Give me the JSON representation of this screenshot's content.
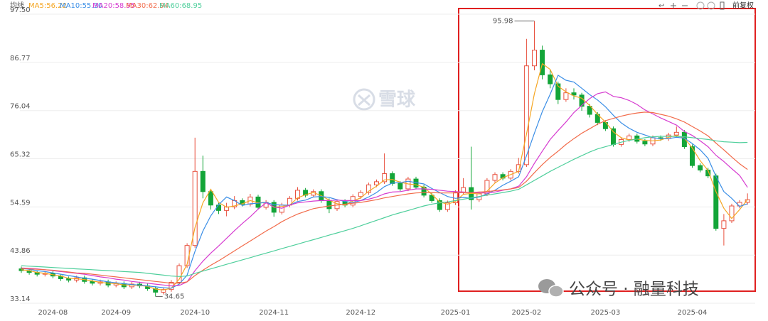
{
  "chart_data": {
    "type": "candlestick",
    "legend_title": "均线",
    "toolbar_label": "前复权",
    "watermarks": [
      "雪球",
      "公众号 · 融量科技"
    ],
    "up_color": "#e8513f",
    "down_color": "#13a538",
    "ylim": [
      33.14,
      97.5
    ],
    "yticks": [
      {
        "value": 33.14,
        "label": "33.14"
      },
      43.86,
      54.59,
      65.32,
      76.04,
      86.77,
      {
        "value": 97.5,
        "label": "97.50"
      }
    ],
    "grid": true,
    "categories": [
      null,
      null,
      null,
      null,
      "2024-08",
      null,
      null,
      null,
      null,
      null,
      null,
      null,
      "2024-09",
      null,
      null,
      null,
      null,
      null,
      null,
      null,
      null,
      null,
      "2024-10",
      null,
      null,
      null,
      null,
      null,
      null,
      null,
      null,
      null,
      "2024-11",
      null,
      null,
      null,
      null,
      null,
      null,
      null,
      null,
      null,
      null,
      "2024-12",
      null,
      null,
      null,
      null,
      null,
      null,
      null,
      null,
      null,
      null,
      null,
      "2025-01",
      null,
      null,
      null,
      null,
      null,
      null,
      null,
      null,
      "2025-02",
      null,
      null,
      null,
      null,
      null,
      null,
      null,
      null,
      null,
      "2025-03",
      null,
      null,
      null,
      null,
      null,
      null,
      null,
      null,
      null,
      null,
      "2025-04",
      null,
      null,
      null,
      null,
      null,
      null,
      null
    ],
    "open": [
      40.8,
      40.4,
      40.0,
      39.6,
      39.8,
      39.2,
      38.6,
      38.3,
      38.8,
      38.0,
      37.6,
      37.9,
      37.2,
      37.5,
      36.8,
      37.4,
      37.0,
      36.4,
      35.6,
      36.2,
      37.8,
      41.5,
      46.0,
      62.5,
      58.0,
      55.0,
      53.8,
      54.6,
      56.0,
      55.2,
      56.8,
      54.5,
      55.6,
      53.4,
      55.0,
      56.5,
      58.3,
      57.2,
      58.0,
      56.0,
      54.2,
      55.8,
      55.0,
      56.9,
      57.8,
      59.5,
      60.2,
      62.0,
      59.8,
      58.6,
      60.8,
      59.0,
      57.2,
      56.0,
      54.0,
      55.5,
      57.8,
      58.9,
      56.2,
      57.5,
      60.5,
      61.8,
      61.0,
      62.5,
      64.0,
      86.0,
      89.5,
      84.0,
      82.0,
      78.5,
      80.0,
      79.5,
      77.0,
      75.2,
      73.4,
      72.0,
      68.5,
      69.6,
      70.4,
      69.2,
      68.6,
      70.0,
      69.8,
      70.6,
      71.2,
      68.0,
      63.8,
      62.8,
      61.5,
      49.8,
      51.5,
      54.8,
      55.6
    ],
    "high": [
      41.3,
      40.9,
      40.5,
      40.3,
      40.3,
      39.7,
      39.1,
      39.3,
      39.3,
      38.5,
      38.4,
      38.4,
      38.0,
      38.0,
      37.9,
      37.9,
      37.5,
      36.9,
      36.7,
      38.3,
      42.0,
      46.5,
      70.0,
      66.0,
      58.5,
      55.5,
      55.5,
      57.0,
      56.5,
      57.5,
      57.3,
      56.1,
      56.1,
      55.5,
      57.0,
      59.0,
      58.8,
      58.5,
      58.5,
      56.5,
      56.3,
      56.3,
      57.4,
      58.3,
      60.0,
      60.7,
      66.5,
      62.5,
      60.3,
      61.3,
      61.3,
      59.5,
      57.7,
      56.5,
      56.0,
      58.3,
      61.0,
      68.0,
      58.0,
      61.0,
      62.3,
      62.3,
      63.0,
      65.5,
      92.0,
      95.98,
      90.5,
      85.0,
      82.5,
      81.0,
      81.0,
      80.0,
      77.5,
      75.7,
      73.9,
      72.5,
      70.1,
      70.9,
      70.9,
      69.7,
      70.5,
      70.5,
      71.1,
      72.5,
      71.7,
      68.5,
      64.3,
      63.3,
      62.0,
      53.0,
      55.3,
      56.1,
      57.6
    ],
    "low": [
      39.9,
      39.5,
      39.1,
      39.1,
      38.7,
      38.1,
      37.8,
      37.8,
      37.5,
      37.1,
      37.1,
      36.7,
      36.7,
      36.3,
      36.3,
      36.5,
      35.9,
      34.65,
      35.1,
      35.7,
      37.3,
      41.0,
      45.5,
      56.5,
      54.0,
      53.0,
      52.5,
      54.1,
      54.7,
      54.7,
      54.0,
      54.0,
      52.4,
      52.9,
      54.5,
      56.0,
      56.7,
      56.7,
      55.5,
      53.2,
      53.7,
      54.5,
      54.5,
      56.4,
      57.3,
      59.0,
      59.7,
      59.3,
      58.1,
      58.1,
      58.5,
      56.7,
      55.5,
      53.5,
      53.5,
      55.0,
      57.3,
      54.0,
      55.7,
      57.0,
      60.0,
      60.5,
      60.5,
      62.0,
      63.5,
      85.0,
      83.0,
      81.0,
      77.5,
      78.0,
      78.5,
      76.0,
      74.5,
      72.8,
      71.5,
      68.0,
      68.0,
      69.1,
      68.7,
      68.1,
      68.1,
      69.3,
      69.3,
      70.1,
      67.5,
      63.3,
      62.3,
      61.0,
      49.3,
      46.0,
      51.0,
      54.3,
      55.1
    ],
    "close": [
      40.4,
      40.0,
      39.6,
      39.8,
      39.2,
      38.6,
      38.3,
      38.8,
      38.0,
      37.6,
      37.9,
      37.2,
      37.5,
      36.8,
      37.4,
      37.0,
      36.4,
      35.6,
      36.2,
      37.8,
      41.5,
      46.0,
      62.5,
      58.0,
      55.0,
      53.8,
      54.6,
      56.0,
      55.2,
      56.8,
      54.5,
      55.6,
      53.4,
      55.0,
      56.5,
      58.3,
      57.2,
      58.0,
      56.0,
      54.2,
      55.8,
      55.0,
      56.9,
      57.8,
      59.5,
      60.2,
      62.0,
      59.8,
      58.6,
      60.8,
      59.0,
      57.2,
      56.0,
      54.0,
      55.5,
      57.8,
      58.9,
      56.2,
      57.5,
      60.5,
      61.8,
      61.0,
      62.5,
      64.0,
      86.0,
      89.5,
      84.0,
      82.0,
      78.5,
      80.0,
      79.5,
      77.0,
      75.2,
      73.4,
      72.0,
      68.5,
      69.6,
      70.4,
      69.2,
      68.6,
      70.0,
      69.8,
      70.6,
      71.2,
      68.0,
      63.8,
      62.8,
      61.5,
      49.8,
      51.5,
      54.8,
      55.6,
      56.2
    ],
    "annotations": [
      95.98,
      34.65
    ],
    "series": [
      {
        "name": "MA5:56.22",
        "color": "#f5a623",
        "values": [
          40.6,
          40.4,
          40.0,
          39.8,
          39.5,
          39.2,
          38.7,
          38.6,
          38.4,
          38.1,
          37.8,
          37.6,
          37.5,
          37.2,
          37.2,
          37.1,
          36.9,
          36.3,
          36.1,
          36.5,
          38.5,
          41.8,
          50.0,
          55.5,
          58.5,
          55.6,
          54.5,
          54.8,
          55.3,
          56.0,
          55.5,
          55.6,
          54.5,
          54.7,
          55.0,
          56.6,
          57.3,
          57.8,
          57.1,
          56.1,
          55.3,
          55.0,
          55.9,
          56.6,
          58.1,
          59.2,
          60.6,
          60.7,
          60.1,
          59.7,
          59.5,
          59.0,
          57.4,
          55.7,
          55.2,
          55.8,
          57.4,
          57.6,
          57.5,
          58.1,
          59.9,
          61.1,
          61.8,
          62.5,
          70.8,
          79.8,
          86.5,
          85.2,
          81.5,
          80.2,
          79.3,
          78.8,
          77.2,
          75.2,
          73.5,
          71.3,
          70.0,
          69.5,
          69.7,
          69.4,
          69.3,
          69.5,
          70.1,
          70.5,
          69.9,
          67.7,
          64.9,
          62.7,
          58.0,
          54.3,
          52.0,
          54.0,
          56.22
        ]
      },
      {
        "name": "MA10:55.30",
        "color": "#3a8ee6",
        "values": [
          40.9,
          40.7,
          40.4,
          40.2,
          39.9,
          39.6,
          39.3,
          39.0,
          38.7,
          38.5,
          38.2,
          37.9,
          37.7,
          37.5,
          37.3,
          37.2,
          37.0,
          36.8,
          36.6,
          36.5,
          37.4,
          39.4,
          44.7,
          49.2,
          52.6,
          55.1,
          56.8,
          56.0,
          54.9,
          55.3,
          55.4,
          55.6,
          55.1,
          55.0,
          55.0,
          55.8,
          56.1,
          56.8,
          56.9,
          56.7,
          56.2,
          55.8,
          55.6,
          56.0,
          56.8,
          57.8,
          59.1,
          59.9,
          60.0,
          60.3,
          60.0,
          59.7,
          58.7,
          57.8,
          56.9,
          56.5,
          56.7,
          56.5,
          56.8,
          57.5,
          58.3,
          59.4,
          60.3,
          61.3,
          66.0,
          71.0,
          75.8,
          79.7,
          83.9,
          82.8,
          82.4,
          81.0,
          79.6,
          78.4,
          76.9,
          75.0,
          73.3,
          72.1,
          71.2,
          70.6,
          70.0,
          69.8,
          69.8,
          70.1,
          69.9,
          68.7,
          67.3,
          65.4,
          61.4,
          58.0,
          56.5,
          54.7,
          55.3
        ]
      },
      {
        "name": "MA20:58.95",
        "color": "#d63cd0",
        "values": [
          41.0,
          40.9,
          40.8,
          40.6,
          40.4,
          40.2,
          40.0,
          39.8,
          39.6,
          39.3,
          39.0,
          38.8,
          38.5,
          38.3,
          38.0,
          37.8,
          37.6,
          37.4,
          37.2,
          37.0,
          37.1,
          37.9,
          40.4,
          42.5,
          44.3,
          45.9,
          47.6,
          49.3,
          50.9,
          52.4,
          54.1,
          55.5,
          54.6,
          54.3,
          55.0,
          55.5,
          55.7,
          55.9,
          56.0,
          56.0,
          56.1,
          56.0,
          56.0,
          56.0,
          56.3,
          56.8,
          57.5,
          57.9,
          58.0,
          58.3,
          58.6,
          58.6,
          58.5,
          58.3,
          58.1,
          58.0,
          57.9,
          57.8,
          57.7,
          57.7,
          57.9,
          58.3,
          58.6,
          59.2,
          61.3,
          64.3,
          67.0,
          69.6,
          71.6,
          73.5,
          75.6,
          77.2,
          78.7,
          79.8,
          80.2,
          79.2,
          78.9,
          78.3,
          77.4,
          76.2,
          75.3,
          74.4,
          73.6,
          72.8,
          71.4,
          70.5,
          69.3,
          68.0,
          66.1,
          64.7,
          63.1,
          61.6,
          58.95
        ]
      },
      {
        "name": "MA30:62.94",
        "color": "#f26b4a",
        "values": [
          40.9,
          40.8,
          40.7,
          40.6,
          40.5,
          40.3,
          40.1,
          39.9,
          39.8,
          39.6,
          39.4,
          39.2,
          39.0,
          38.8,
          38.6,
          38.4,
          38.2,
          38.0,
          37.8,
          37.6,
          37.6,
          37.9,
          39.3,
          40.5,
          41.6,
          42.6,
          43.7,
          44.8,
          45.9,
          47.0,
          48.1,
          49.2,
          50.2,
          51.3,
          52.2,
          53.0,
          53.6,
          54.2,
          54.5,
          54.8,
          55.0,
          55.2,
          55.4,
          55.6,
          55.9,
          56.2,
          56.6,
          56.9,
          57.2,
          57.5,
          57.7,
          57.8,
          57.8,
          57.7,
          57.7,
          57.7,
          57.8,
          57.8,
          57.9,
          58.0,
          58.2,
          58.4,
          58.6,
          58.9,
          60.3,
          62.2,
          64.0,
          65.6,
          67.0,
          68.5,
          69.8,
          71.0,
          72.0,
          73.0,
          73.8,
          74.3,
          74.8,
          75.2,
          75.5,
          75.7,
          75.6,
          75.2,
          74.8,
          74.2,
          73.5,
          72.5,
          71.5,
          70.4,
          68.8,
          67.3,
          65.7,
          64.2,
          62.94
        ]
      },
      {
        "name": "MA60:68.95",
        "color": "#4fcf9c",
        "values": [
          41.5,
          41.4,
          41.3,
          41.2,
          41.1,
          41.0,
          40.9,
          40.8,
          40.7,
          40.6,
          40.5,
          40.4,
          40.3,
          40.2,
          40.1,
          40.0,
          39.8,
          39.6,
          39.4,
          39.2,
          39.1,
          39.2,
          39.8,
          40.3,
          40.8,
          41.3,
          41.8,
          42.3,
          42.8,
          43.3,
          43.8,
          44.3,
          44.8,
          45.3,
          45.8,
          46.3,
          46.8,
          47.3,
          47.8,
          48.3,
          48.8,
          49.3,
          49.8,
          50.4,
          51.0,
          51.6,
          52.2,
          52.8,
          53.3,
          53.8,
          54.3,
          54.8,
          55.2,
          55.5,
          55.7,
          56.0,
          56.3,
          56.6,
          56.9,
          57.2,
          57.5,
          57.8,
          58.1,
          58.5,
          59.5,
          60.5,
          61.5,
          62.5,
          63.4,
          64.3,
          65.2,
          66.0,
          66.8,
          67.5,
          68.0,
          68.5,
          69.0,
          69.4,
          69.7,
          70.0,
          70.2,
          70.3,
          70.3,
          70.3,
          70.2,
          70.0,
          69.8,
          69.6,
          69.3,
          69.1,
          69.0,
          68.9,
          68.95
        ]
      }
    ]
  }
}
